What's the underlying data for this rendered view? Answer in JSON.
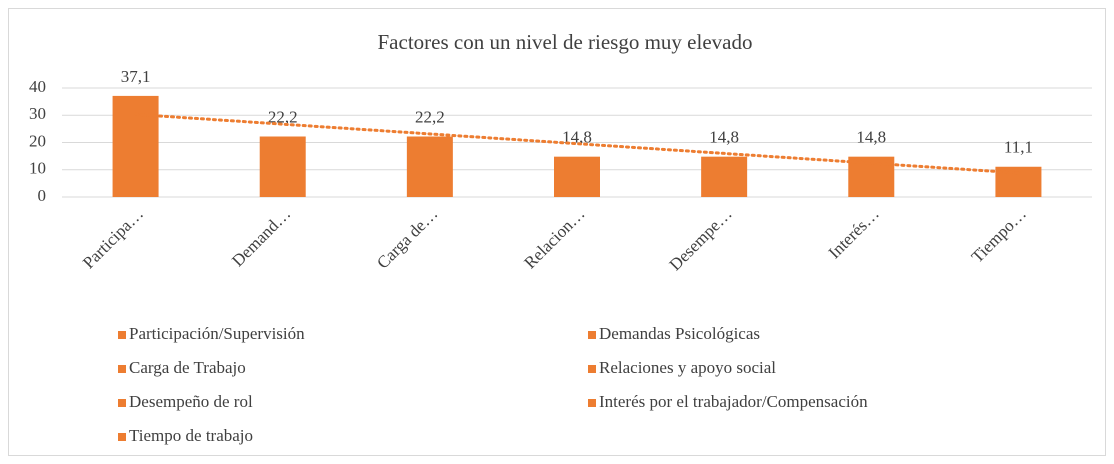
{
  "chart_data": {
    "type": "bar",
    "title": "Factores con un nivel de riesgo muy elevado",
    "categories": [
      "Participa…",
      "Demand…",
      "Carga de…",
      "Relacion…",
      "Desempe…",
      "Interés…",
      "Tiempo…"
    ],
    "values": [
      37.1,
      22.2,
      22.2,
      14.8,
      14.8,
      14.8,
      11.1
    ],
    "value_labels": [
      "37,1",
      "22,2",
      "22,2",
      "14,8",
      "14,8",
      "14,8",
      "11,1"
    ],
    "color": "#ed7d31",
    "ylim": [
      0,
      40
    ],
    "yticks": [
      0,
      10,
      20,
      30,
      40
    ],
    "grid": true,
    "trendline": "linear",
    "trendline_color": "#ed7d31",
    "legend": [
      "Participación/Supervisión",
      "Demandas Psicológicas",
      "Carga de Trabajo",
      "Relaciones y apoyo social",
      "Desempeño de rol",
      "Interés por el trabajador/Compensación",
      "Tiempo de trabajo"
    ],
    "legend_position": "bottom"
  }
}
